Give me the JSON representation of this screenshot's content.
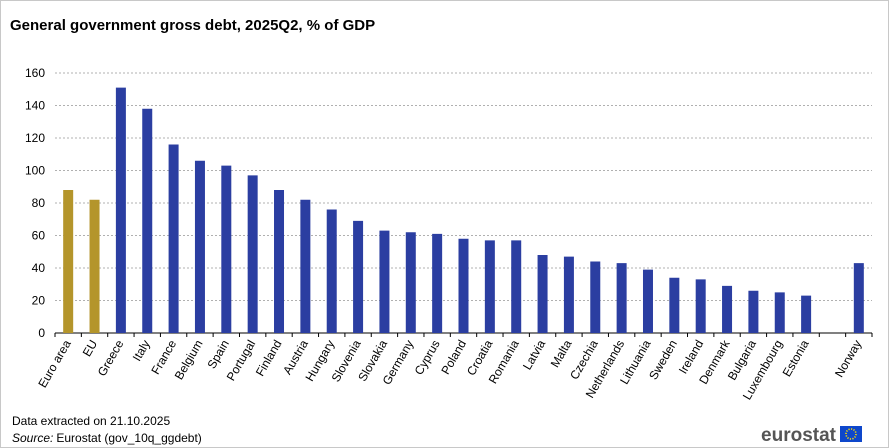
{
  "chart_data": {
    "type": "bar",
    "title": "General government gross debt, 2025Q2, %  of GDP",
    "categories": [
      "Euro area",
      "EU",
      "Greece",
      "Italy",
      "France",
      "Belgium",
      "Spain",
      "Portugal",
      "Finland",
      "Austria",
      "Hungary",
      "Slovenia",
      "Slovakia",
      "Germany",
      "Cyprus",
      "Poland",
      "Croatia",
      "Romania",
      "Latvia",
      "Malta",
      "Czechia",
      "Netherlands",
      "Lithuania",
      "Sweden",
      "Ireland",
      "Denmark",
      "Bulgaria",
      "Luxembourg",
      "Estonia",
      null,
      "Norway"
    ],
    "values": [
      88,
      82,
      151,
      138,
      116,
      106,
      103,
      97,
      88,
      82,
      76,
      69,
      63,
      62,
      61,
      58,
      57,
      57,
      48,
      47,
      44,
      43,
      39,
      34,
      33,
      29,
      26,
      25,
      23,
      null,
      43
    ],
    "colors": [
      "#b4952b",
      "#b4952b",
      "#2b3ea1",
      "#2b3ea1",
      "#2b3ea1",
      "#2b3ea1",
      "#2b3ea1",
      "#2b3ea1",
      "#2b3ea1",
      "#2b3ea1",
      "#2b3ea1",
      "#2b3ea1",
      "#2b3ea1",
      "#2b3ea1",
      "#2b3ea1",
      "#2b3ea1",
      "#2b3ea1",
      "#2b3ea1",
      "#2b3ea1",
      "#2b3ea1",
      "#2b3ea1",
      "#2b3ea1",
      "#2b3ea1",
      "#2b3ea1",
      "#2b3ea1",
      "#2b3ea1",
      "#2b3ea1",
      "#2b3ea1",
      "#2b3ea1",
      null,
      "#2b3ea1"
    ],
    "ylim": [
      0,
      160
    ],
    "yticks": [
      0,
      20,
      40,
      60,
      80,
      100,
      120,
      140,
      160
    ],
    "grid": true,
    "note": "Data extracted on 21.10.2025",
    "source_label": "Source:",
    "source_text": "Eurostat (gov_10q_ggdebt)",
    "logo_text": "eurostat"
  }
}
